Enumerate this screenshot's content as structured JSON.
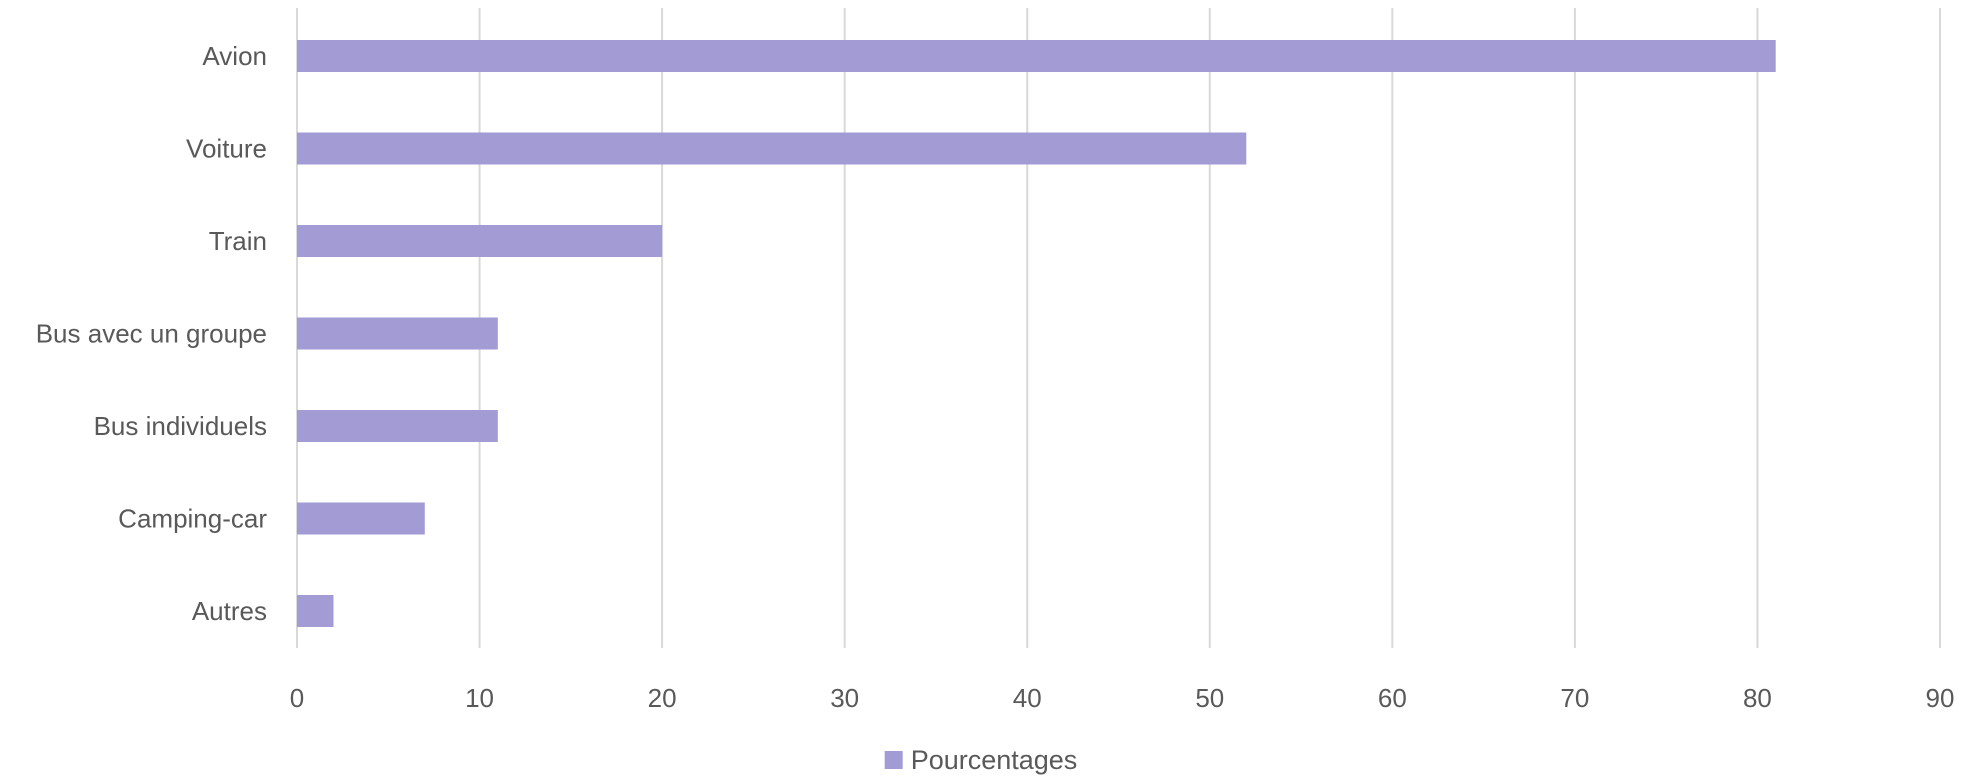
{
  "chart_data": {
    "type": "bar",
    "orientation": "horizontal",
    "title": "",
    "xlabel": "",
    "ylabel": "",
    "categories": [
      "Avion",
      "Voiture",
      "Train",
      "Bus avec un groupe",
      "Bus individuels",
      "Camping-car",
      "Autres"
    ],
    "series": [
      {
        "name": "Pourcentages",
        "values": [
          81,
          52,
          20,
          11,
          11,
          7,
          2
        ],
        "color": "#a29bd4"
      }
    ],
    "xlim": [
      0,
      90
    ],
    "xticks": [
      "0",
      "10",
      "20",
      "30",
      "40",
      "50",
      "60",
      "70",
      "80",
      "90"
    ],
    "grid": "vertical",
    "legend_position": "bottom"
  }
}
